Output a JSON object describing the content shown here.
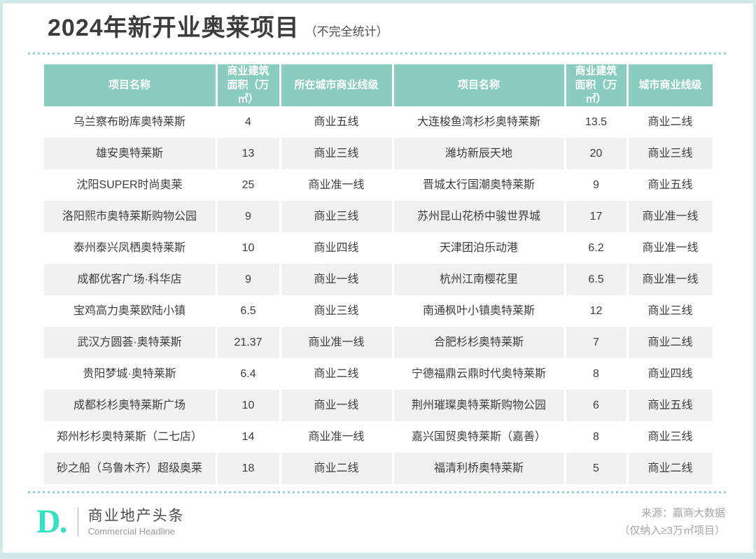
{
  "title": {
    "main": "2024年新开业奥莱项目",
    "note": "（不完全统计）"
  },
  "colors": {
    "header_teal": "#8acdc0",
    "row_alt_gray": "#f1f1f1",
    "page_border_teal": "#cfe9e9",
    "dot_teal": "#90d4d0",
    "logo_teal": "#35e1c1",
    "body_text": "#3d3d3d"
  },
  "table": {
    "headers": [
      "项目名称",
      "商业建筑面积（万㎡）",
      "所在城市商业线级",
      "项目名称",
      "商业建筑面积（万㎡）",
      "城市商业线级"
    ],
    "rows": [
      [
        "乌兰察布盼库奥特莱斯",
        "4",
        "商业五线",
        "大连梭鱼湾杉杉奥特莱斯",
        "13.5",
        "商业二线"
      ],
      [
        "雄安奥特莱斯",
        "13",
        "商业三线",
        "潍坊新辰天地",
        "20",
        "商业三线"
      ],
      [
        "沈阳SUPER时尚奥莱",
        "25",
        "商业准一线",
        "晋城太行国潮奥特莱斯",
        "9",
        "商业五线"
      ],
      [
        "洛阳熙市奥特莱斯购物公园",
        "9",
        "商业三线",
        "苏州昆山花桥中骏世界城",
        "17",
        "商业准一线"
      ],
      [
        "泰州泰兴凤栖奥特莱斯",
        "10",
        "商业四线",
        "天津团泊乐动港",
        "6.2",
        "商业准一线"
      ],
      [
        "成都优客广场·科华店",
        "9",
        "商业一线",
        "杭州江南樱花里",
        "6.5",
        "商业准一线"
      ],
      [
        "宝鸡高力奥莱欧陆小镇",
        "6.5",
        "商业三线",
        "南通枫叶小镇奥特莱斯",
        "12",
        "商业三线"
      ],
      [
        "武汉方圆荟·奥特莱斯",
        "21.37",
        "商业准一线",
        "合肥杉杉奥特莱斯",
        "7",
        "商业二线"
      ],
      [
        "贵阳梦城·奥特莱斯",
        "6.4",
        "商业二线",
        "宁德福鼎云鼎时代奥特莱斯",
        "8",
        "商业四线"
      ],
      [
        "成都杉杉奥特莱斯广场",
        "10",
        "商业一线",
        "荆州璀璨奥特莱斯购物公园",
        "6",
        "商业五线"
      ],
      [
        "郑州杉杉奥特莱斯（二七店）",
        "14",
        "商业准一线",
        "嘉兴国贸奥特莱斯（嘉善）",
        "8",
        "商业三线"
      ],
      [
        "砂之船（乌鲁木齐）超级奥莱",
        "18",
        "商业二线",
        "福清利桥奥特莱斯",
        "5",
        "商业二线"
      ]
    ]
  },
  "chart_data": {
    "type": "table",
    "title": "2024年新开业奥莱项目（不完全统计）",
    "columns": [
      "项目名称",
      "商业建筑面积（万㎡）",
      "所在城市商业线级"
    ],
    "rows": [
      [
        "乌兰察布盼库奥特莱斯",
        4,
        "商业五线"
      ],
      [
        "雄安奥特莱斯",
        13,
        "商业三线"
      ],
      [
        "沈阳SUPER时尚奥莱",
        25,
        "商业准一线"
      ],
      [
        "洛阳熙市奥特莱斯购物公园",
        9,
        "商业三线"
      ],
      [
        "泰州泰兴凤栖奥特莱斯",
        10,
        "商业四线"
      ],
      [
        "成都优客广场·科华店",
        9,
        "商业一线"
      ],
      [
        "宝鸡高力奥莱欧陆小镇",
        6.5,
        "商业三线"
      ],
      [
        "武汉方圆荟·奥特莱斯",
        21.37,
        "商业准一线"
      ],
      [
        "贵阳梦城·奥特莱斯",
        6.4,
        "商业二线"
      ],
      [
        "成都杉杉奥特莱斯广场",
        10,
        "商业一线"
      ],
      [
        "郑州杉杉奥特莱斯（二七店）",
        14,
        "商业准一线"
      ],
      [
        "砂之船（乌鲁木齐）超级奥莱",
        18,
        "商业二线"
      ],
      [
        "大连梭鱼湾杉杉奥特莱斯",
        13.5,
        "商业二线"
      ],
      [
        "潍坊新辰天地",
        20,
        "商业三线"
      ],
      [
        "晋城太行国潮奥特莱斯",
        9,
        "商业五线"
      ],
      [
        "苏州昆山花桥中骏世界城",
        17,
        "商业准一线"
      ],
      [
        "天津团泊乐动港",
        6.2,
        "商业准一线"
      ],
      [
        "杭州江南樱花里",
        6.5,
        "商业准一线"
      ],
      [
        "南通枫叶小镇奥特莱斯",
        12,
        "商业三线"
      ],
      [
        "合肥杉杉奥特莱斯",
        7,
        "商业二线"
      ],
      [
        "宁德福鼎云鼎时代奥特莱斯",
        8,
        "商业四线"
      ],
      [
        "荆州璀璨奥特莱斯购物公园",
        6,
        "商业五线"
      ],
      [
        "嘉兴国贸奥特莱斯（嘉善）",
        8,
        "商业三线"
      ],
      [
        "福清利桥奥特莱斯",
        5,
        "商业二线"
      ]
    ]
  },
  "footer": {
    "logo_mark": "D.",
    "brand_cn": "商业地产头条",
    "brand_en": "Commercial Headline",
    "source_line1": "来源：赢商大数据",
    "source_line2": "（仅纳入≥3万㎡项目）"
  }
}
